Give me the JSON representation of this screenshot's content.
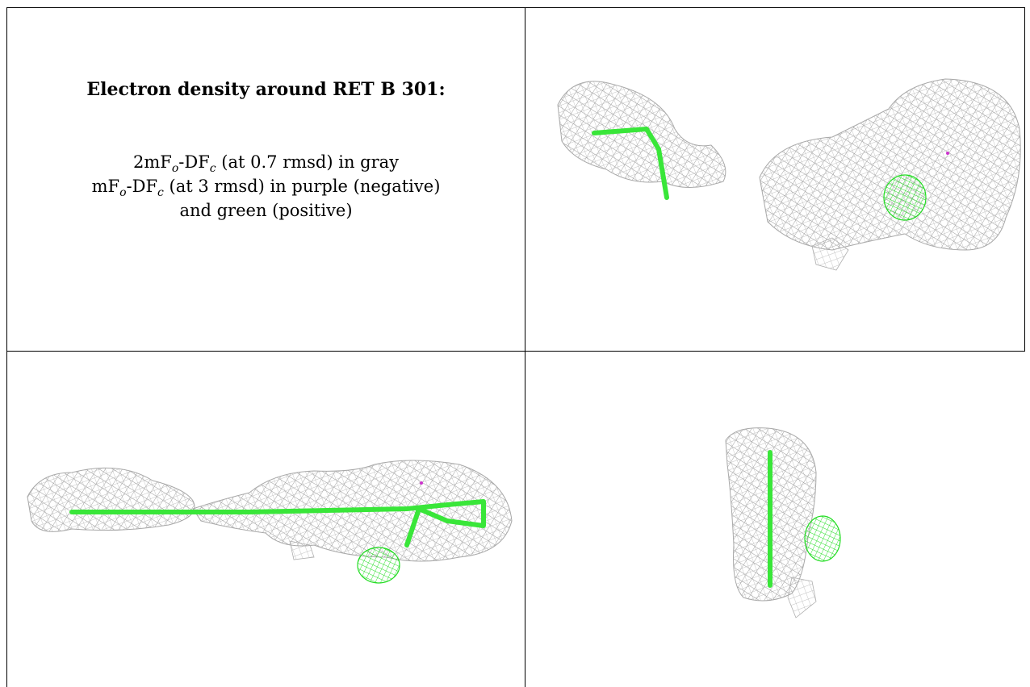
{
  "caption": {
    "title": "Electron density around RET B 301:",
    "line1": {
      "a": "2mF",
      "o": "o",
      "b": "-DF",
      "c": "c",
      "rest": " (at 0.7 rmsd) in gray"
    },
    "line2": {
      "a": "mF",
      "o": "o",
      "b": "-DF",
      "c": "c",
      "rest": " (at 3 rmsd) in purple (negative)"
    },
    "line3": "and green (positive)"
  },
  "colors": {
    "mesh_2fofc": "#9a9a9a",
    "model": "#39e639",
    "diff_positive": "#22dd22",
    "diff_negative": "#cc33cc"
  },
  "panels": [
    {
      "name": "view-top-right",
      "icon": "density-view-1"
    },
    {
      "name": "view-bottom-left",
      "icon": "density-view-2"
    },
    {
      "name": "view-bottom-right",
      "icon": "density-view-3"
    }
  ]
}
